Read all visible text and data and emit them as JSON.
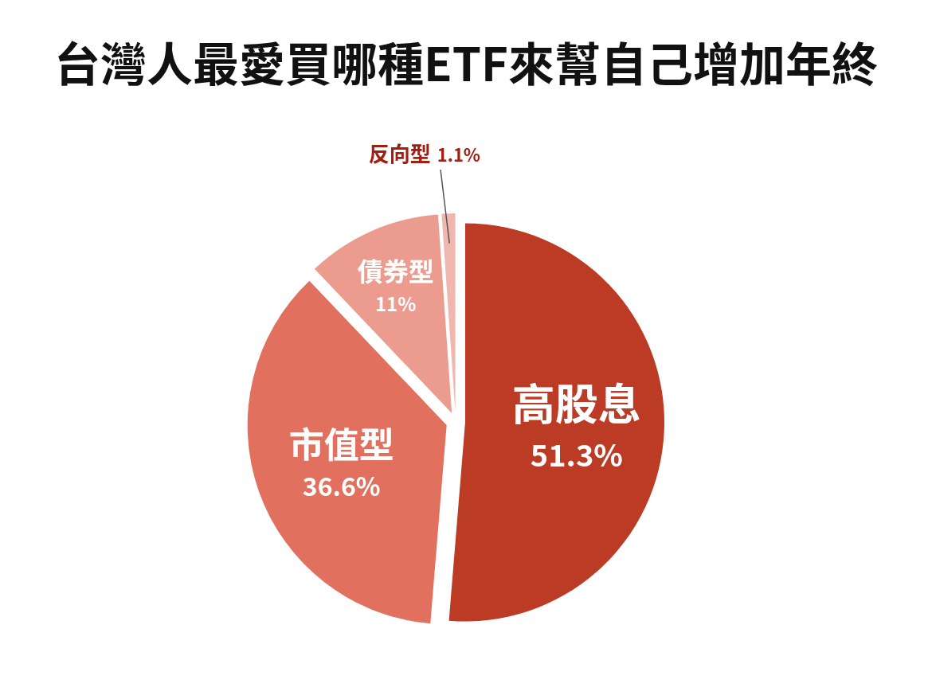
{
  "chart_data": {
    "type": "pie",
    "title": "台灣人最愛買哪種ETF來幫自己增加年終",
    "categories": [
      "高股息",
      "市值型",
      "債券型",
      "反向型"
    ],
    "values": [
      51.3,
      36.6,
      11,
      1.1
    ],
    "colors": [
      "#bc3b25",
      "#e1705f",
      "#eb9c8f",
      "#f0b7ae"
    ],
    "value_labels": [
      "51.3%",
      "36.6%",
      "11%",
      "1.1%"
    ]
  }
}
